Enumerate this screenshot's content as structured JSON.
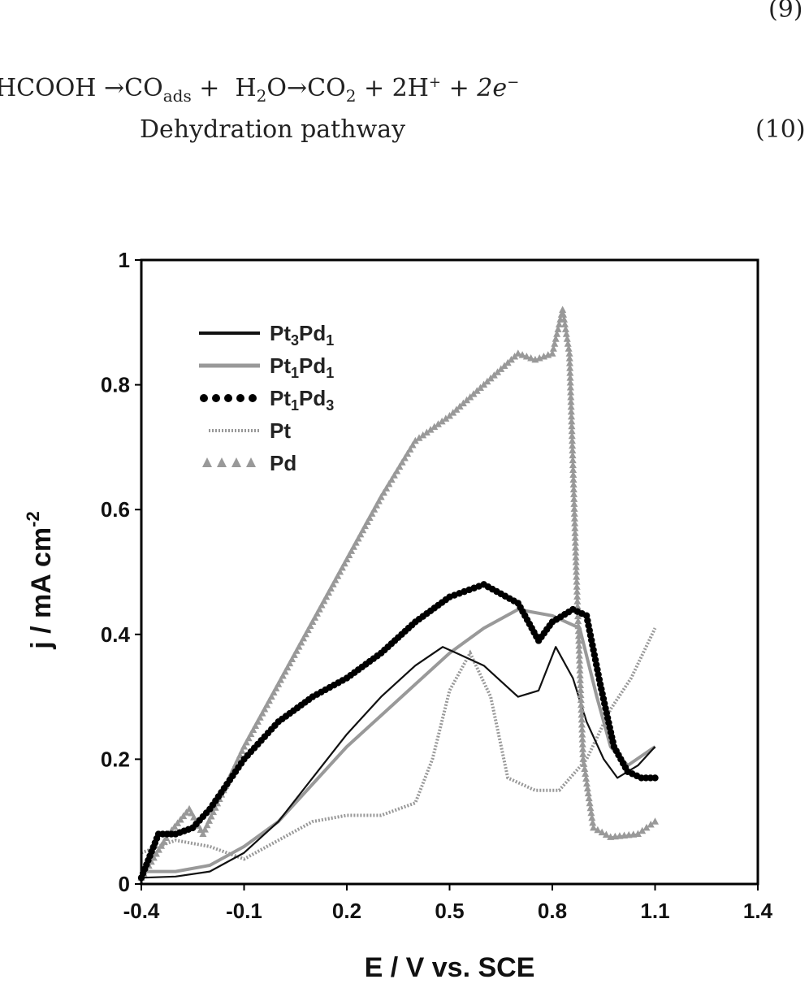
{
  "equations": {
    "eq9_number": "(9)",
    "eq10_lhs": "HCOOH",
    "eq10_co": "CO",
    "eq10_co_sub": "ads",
    "eq10_h2o_h": "H",
    "eq10_h2o_sub": "2",
    "eq10_h2o_o": "O",
    "eq10_co2": "CO",
    "eq10_co2_sub": "2",
    "eq10_h": "2H",
    "eq10_h_sup": "+",
    "eq10_e": "2e",
    "eq10_e_sup": "−",
    "eq10_caption": "Dehydration pathway",
    "eq10_number": "(10)"
  },
  "chart_data": {
    "type": "line",
    "xlabel": "E / V vs. SCE",
    "ylabel": "j / mA cm",
    "ylabel_sup": "-2",
    "xlim": [
      -0.4,
      1.4
    ],
    "ylim": [
      0,
      1
    ],
    "xticks": [
      "-0.4",
      "-0.1",
      "0.2",
      "0.5",
      "0.8",
      "1.1",
      "1.4"
    ],
    "yticks": [
      "0",
      "0.2",
      "0.4",
      "0.6",
      "0.8",
      "1"
    ],
    "legend_position": "top-left",
    "series": [
      {
        "name": "Pt3Pd1",
        "label_parts": [
          "Pt",
          "3",
          "Pd",
          "1"
        ],
        "style": "solid-thin",
        "color": "#111111",
        "points": [
          [
            -0.4,
            0.01
          ],
          [
            -0.3,
            0.012
          ],
          [
            -0.2,
            0.02
          ],
          [
            -0.1,
            0.05
          ],
          [
            0.0,
            0.1
          ],
          [
            0.1,
            0.17
          ],
          [
            0.2,
            0.24
          ],
          [
            0.3,
            0.3
          ],
          [
            0.4,
            0.35
          ],
          [
            0.48,
            0.38
          ],
          [
            0.52,
            0.37
          ],
          [
            0.6,
            0.35
          ],
          [
            0.7,
            0.3
          ],
          [
            0.76,
            0.31
          ],
          [
            0.81,
            0.38
          ],
          [
            0.86,
            0.33
          ],
          [
            0.9,
            0.26
          ],
          [
            0.95,
            0.2
          ],
          [
            0.99,
            0.17
          ],
          [
            1.05,
            0.19
          ],
          [
            1.1,
            0.22
          ]
        ]
      },
      {
        "name": "Pt1Pd1",
        "label_parts": [
          "Pt",
          "1",
          "Pd",
          "1"
        ],
        "style": "solid-thick",
        "color": "#999999",
        "points": [
          [
            -0.4,
            0.02
          ],
          [
            -0.3,
            0.02
          ],
          [
            -0.2,
            0.03
          ],
          [
            -0.1,
            0.06
          ],
          [
            0.0,
            0.1
          ],
          [
            0.1,
            0.16
          ],
          [
            0.2,
            0.22
          ],
          [
            0.3,
            0.27
          ],
          [
            0.4,
            0.32
          ],
          [
            0.5,
            0.37
          ],
          [
            0.6,
            0.41
          ],
          [
            0.7,
            0.44
          ],
          [
            0.8,
            0.43
          ],
          [
            0.88,
            0.41
          ],
          [
            0.93,
            0.3
          ],
          [
            0.97,
            0.22
          ],
          [
            1.02,
            0.19
          ],
          [
            1.1,
            0.22
          ]
        ]
      },
      {
        "name": "Pt1Pd3",
        "label_parts": [
          "Pt",
          "1",
          "Pd",
          "3"
        ],
        "style": "dots",
        "color": "#000000",
        "points": [
          [
            -0.4,
            0.01
          ],
          [
            -0.35,
            0.08
          ],
          [
            -0.3,
            0.08
          ],
          [
            -0.25,
            0.09
          ],
          [
            -0.2,
            0.12
          ],
          [
            -0.1,
            0.2
          ],
          [
            0.0,
            0.26
          ],
          [
            0.1,
            0.3
          ],
          [
            0.2,
            0.33
          ],
          [
            0.3,
            0.37
          ],
          [
            0.4,
            0.42
          ],
          [
            0.5,
            0.46
          ],
          [
            0.6,
            0.48
          ],
          [
            0.7,
            0.45
          ],
          [
            0.76,
            0.39
          ],
          [
            0.8,
            0.42
          ],
          [
            0.86,
            0.44
          ],
          [
            0.9,
            0.43
          ],
          [
            0.94,
            0.32
          ],
          [
            0.98,
            0.22
          ],
          [
            1.02,
            0.18
          ],
          [
            1.06,
            0.17
          ],
          [
            1.1,
            0.17
          ]
        ]
      },
      {
        "name": "Pt",
        "label_parts": [
          "Pt",
          "",
          "",
          ""
        ],
        "style": "dotted",
        "color": "#999999",
        "points": [
          [
            -0.4,
            0.05
          ],
          [
            -0.3,
            0.07
          ],
          [
            -0.2,
            0.06
          ],
          [
            -0.1,
            0.04
          ],
          [
            0.0,
            0.07
          ],
          [
            0.1,
            0.1
          ],
          [
            0.2,
            0.11
          ],
          [
            0.25,
            0.11
          ],
          [
            0.3,
            0.11
          ],
          [
            0.4,
            0.13
          ],
          [
            0.45,
            0.2
          ],
          [
            0.5,
            0.31
          ],
          [
            0.56,
            0.37
          ],
          [
            0.62,
            0.3
          ],
          [
            0.67,
            0.17
          ],
          [
            0.75,
            0.15
          ],
          [
            0.82,
            0.15
          ],
          [
            0.9,
            0.2
          ],
          [
            0.97,
            0.28
          ],
          [
            1.03,
            0.33
          ],
          [
            1.1,
            0.41
          ]
        ]
      },
      {
        "name": "Pd",
        "label_parts": [
          "Pd",
          "",
          "",
          ""
        ],
        "style": "triangles",
        "color": "#999999",
        "points": [
          [
            -0.4,
            0.01
          ],
          [
            -0.32,
            0.08
          ],
          [
            -0.26,
            0.12
          ],
          [
            -0.22,
            0.08
          ],
          [
            -0.1,
            0.22
          ],
          [
            0.0,
            0.32
          ],
          [
            0.1,
            0.42
          ],
          [
            0.2,
            0.52
          ],
          [
            0.3,
            0.62
          ],
          [
            0.4,
            0.71
          ],
          [
            0.5,
            0.75
          ],
          [
            0.6,
            0.8
          ],
          [
            0.7,
            0.85
          ],
          [
            0.75,
            0.84
          ],
          [
            0.8,
            0.85
          ],
          [
            0.83,
            0.92
          ],
          [
            0.85,
            0.85
          ],
          [
            0.87,
            0.5
          ],
          [
            0.89,
            0.2
          ],
          [
            0.92,
            0.09
          ],
          [
            0.97,
            0.075
          ],
          [
            1.05,
            0.08
          ],
          [
            1.1,
            0.1
          ]
        ]
      }
    ]
  }
}
